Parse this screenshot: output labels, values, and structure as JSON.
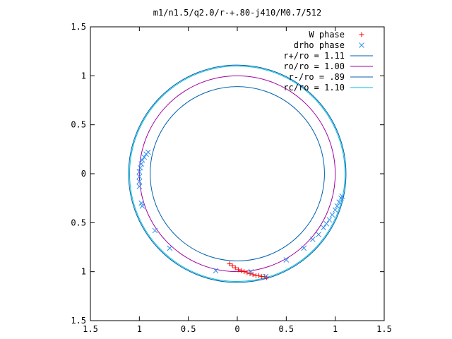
{
  "chart_data": {
    "type": "scatter",
    "title": "m1/n1.5/q2.0/r-+.80-j410/M0.7/512",
    "xlabel": "",
    "ylabel": "",
    "xlim": [
      -1.5,
      1.5
    ],
    "ylim": [
      -1.5,
      1.5
    ],
    "grid": false,
    "legend_position": "top-right",
    "x_ticks": [
      {
        "value": -1.5,
        "label": "1.5"
      },
      {
        "value": -1.0,
        "label": "1"
      },
      {
        "value": -0.5,
        "label": "0.5"
      },
      {
        "value": 0,
        "label": "0"
      },
      {
        "value": 0.5,
        "label": "0.5"
      },
      {
        "value": 1.0,
        "label": "1"
      },
      {
        "value": 1.5,
        "label": "1.5"
      }
    ],
    "y_ticks": [
      {
        "value": 1.5,
        "label": "1.5"
      },
      {
        "value": 1.0,
        "label": "1"
      },
      {
        "value": 0.5,
        "label": "0.5"
      },
      {
        "value": 0,
        "label": "0"
      },
      {
        "value": -0.5,
        "label": "0.5"
      },
      {
        "value": -1.0,
        "label": "1"
      },
      {
        "value": -1.5,
        "label": "1.5"
      }
    ],
    "circles": [
      {
        "name": "r+/ro = 1.11",
        "radius": 1.11,
        "color": "#0060ad"
      },
      {
        "name": "ro/ro = 1.00",
        "radius": 1.0,
        "color": "#a000a0"
      },
      {
        "name": "r-/ro =  .89",
        "radius": 0.89,
        "color": "#0060ad"
      },
      {
        "name": "rc/ro = 1.10",
        "radius": 1.1,
        "color": "#00bcdc"
      }
    ],
    "series": [
      {
        "name": "W phase",
        "marker": "+",
        "color": "#ff0000",
        "points": [
          [
            -0.08,
            -0.92
          ],
          [
            -0.05,
            -0.94
          ],
          [
            -0.02,
            -0.96
          ],
          [
            0.01,
            -0.98
          ],
          [
            0.04,
            -0.99
          ],
          [
            0.07,
            -1.0
          ],
          [
            0.1,
            -1.01
          ],
          [
            0.13,
            -1.02
          ],
          [
            0.16,
            -1.03
          ],
          [
            0.19,
            -1.04
          ],
          [
            0.22,
            -1.04
          ],
          [
            0.25,
            -1.05
          ],
          [
            0.28,
            -1.05
          ],
          [
            0.3,
            -1.06
          ]
        ]
      },
      {
        "name": "drho phase",
        "marker": "x",
        "color": "#3090f0",
        "points": [
          [
            -0.91,
            0.22
          ],
          [
            -0.93,
            0.2
          ],
          [
            -0.95,
            0.17
          ],
          [
            -0.97,
            0.14
          ],
          [
            -0.98,
            0.1
          ],
          [
            -0.99,
            0.06
          ],
          [
            -1.0,
            0.02
          ],
          [
            -1.0,
            -0.03
          ],
          [
            -1.0,
            -0.08
          ],
          [
            -1.0,
            -0.13
          ],
          [
            -0.98,
            -0.3
          ],
          [
            -0.97,
            -0.33
          ],
          [
            -0.84,
            -0.58
          ],
          [
            -0.69,
            -0.76
          ],
          [
            -0.22,
            -0.99
          ],
          [
            0.14,
            -1.0
          ],
          [
            0.29,
            -1.05
          ],
          [
            0.5,
            -0.88
          ],
          [
            0.68,
            -0.76
          ],
          [
            0.77,
            -0.67
          ],
          [
            0.83,
            -0.62
          ],
          [
            0.88,
            -0.55
          ],
          [
            0.91,
            -0.51
          ],
          [
            0.94,
            -0.47
          ],
          [
            0.97,
            -0.42
          ],
          [
            1.0,
            -0.37
          ],
          [
            1.02,
            -0.33
          ],
          [
            1.04,
            -0.29
          ],
          [
            1.06,
            -0.25
          ],
          [
            1.07,
            -0.23
          ]
        ]
      }
    ]
  }
}
